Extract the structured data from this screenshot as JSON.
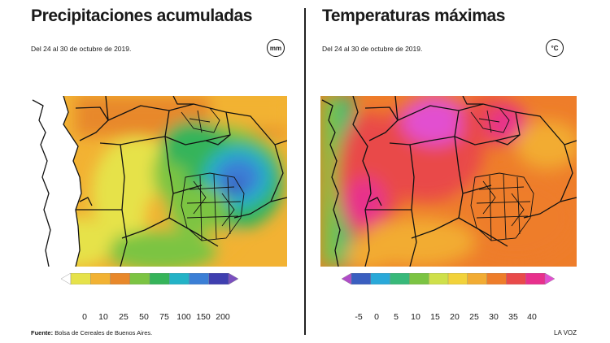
{
  "left_panel": {
    "title": "Precipitaciones acumuladas",
    "subtitle": "Del 24 al 30 de octubre de 2019.",
    "unit": "mm",
    "legend": {
      "ticks": [
        "0",
        "10",
        "25",
        "50",
        "75",
        "100",
        "150",
        "200"
      ],
      "colors": [
        "#ffffff",
        "#e6e24a",
        "#f2b233",
        "#e8882a",
        "#7cc443",
        "#36b45a",
        "#23b3c7",
        "#3b7fd6",
        "#3f3fb0",
        "#7a4fbf"
      ]
    }
  },
  "right_panel": {
    "title": "Temperaturas máximas",
    "subtitle": "Del 24 al 30 de octubre de 2019.",
    "unit": "°C",
    "legend": {
      "ticks": [
        "-5",
        "0",
        "5",
        "10",
        "15",
        "20",
        "25",
        "30",
        "35",
        "40"
      ],
      "colors": [
        "#b04cc8",
        "#3a5fc0",
        "#2aa9d9",
        "#38b97a",
        "#7cc443",
        "#cfe04a",
        "#f2d23a",
        "#f2ac33",
        "#ee7d2a",
        "#e94a4a",
        "#e8308c",
        "#e24fd0"
      ]
    }
  },
  "footer": {
    "source_label": "Fuente:",
    "source_text": "Bolsa de Cereales de Buenos Aires.",
    "credit": "LA VOZ"
  }
}
